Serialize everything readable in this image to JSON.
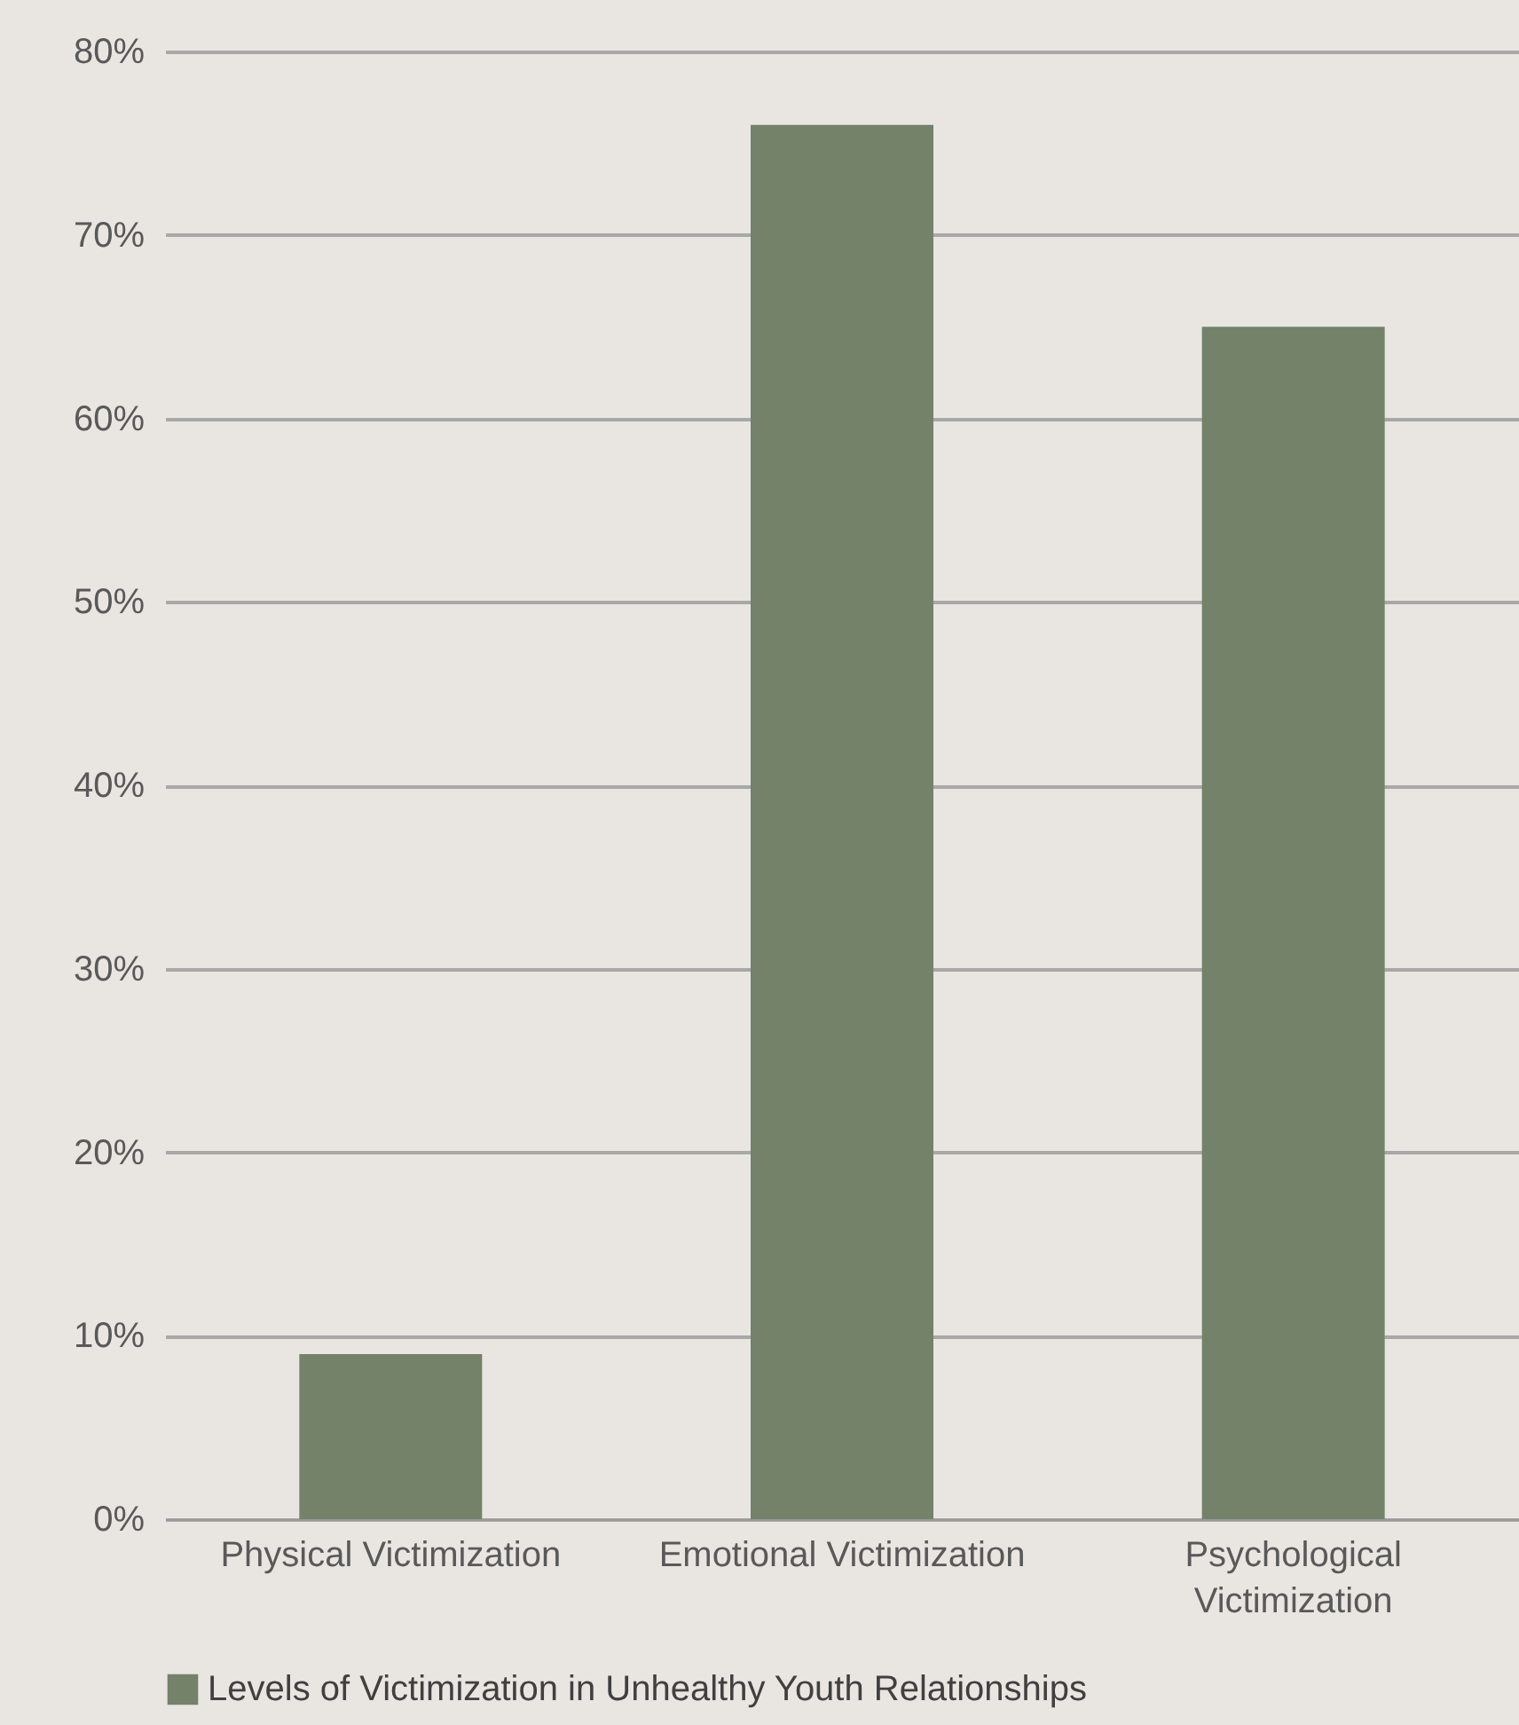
{
  "chart_data": {
    "type": "bar",
    "categories": [
      "Physical Victimization",
      "Emotional Victimization",
      "Psychological Victimization"
    ],
    "series": [
      {
        "name": "Levels of Victimization in Unhealthy Youth Relationships",
        "color": "#738269",
        "values": [
          9,
          76,
          65
        ]
      }
    ],
    "ylim": [
      0,
      80
    ],
    "yticks": [
      {
        "value": 0,
        "label": "0%"
      },
      {
        "value": 10,
        "label": "10%"
      },
      {
        "value": 20,
        "label": "20%"
      },
      {
        "value": 30,
        "label": "30%"
      },
      {
        "value": 40,
        "label": "40%"
      },
      {
        "value": 50,
        "label": "50%"
      },
      {
        "value": 60,
        "label": "60%"
      },
      {
        "value": 70,
        "label": "70%"
      },
      {
        "value": 80,
        "label": "80%"
      }
    ],
    "grid": "y",
    "legend": "bottom"
  }
}
